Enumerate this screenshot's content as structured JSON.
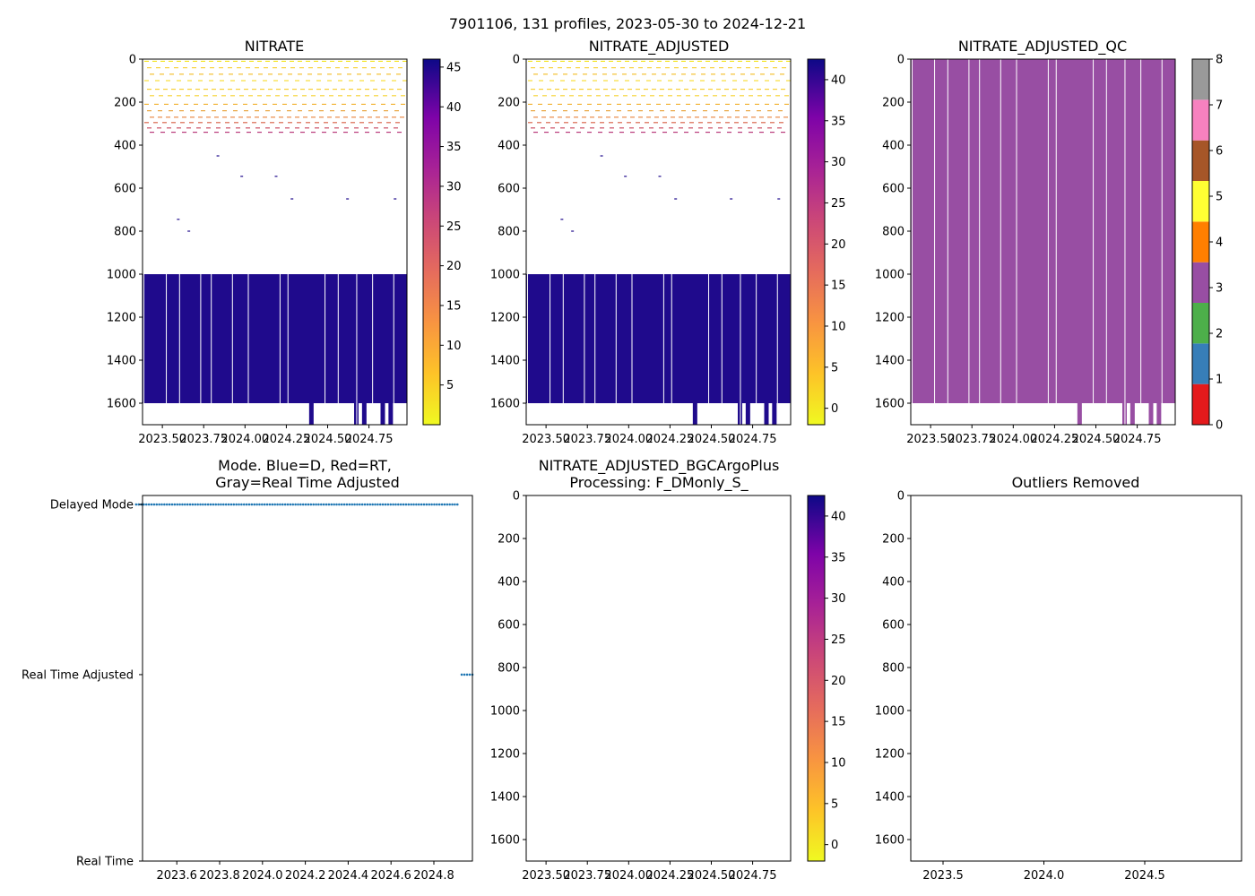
{
  "figure": {
    "suptitle": "7901106, 131 profiles, 2023-05-30 to 2024-12-21"
  },
  "colors": {
    "fill_deep": "#1f0a8c",
    "qc_purple": "#984ea3",
    "mode_dots": "#1f77b4"
  },
  "chart_data": [
    {
      "type": "heatmap",
      "title": "NITRATE",
      "xlabel": "",
      "ylabel": "",
      "xlim": [
        2023.38,
        2024.98
      ],
      "ylim": [
        1700,
        0
      ],
      "x_tick_labels": [
        "2023.50",
        "2023.75",
        "2024.00",
        "2024.25",
        "2024.50",
        "2024.75"
      ],
      "x_tick_values": [
        2023.5,
        2023.75,
        2024.0,
        2024.25,
        2024.5,
        2024.75
      ],
      "y_tick_labels": [
        "0",
        "200",
        "400",
        "600",
        "800",
        "1000",
        "1200",
        "1400",
        "1600"
      ],
      "y_tick_values": [
        0,
        200,
        400,
        600,
        800,
        1000,
        1200,
        1400,
        1600
      ],
      "colormap": "plasma_r",
      "colorbar": {
        "range": [
          0,
          46
        ],
        "tick_labels": [
          "5",
          "10",
          "15",
          "20",
          "25",
          "30",
          "35",
          "40",
          "45"
        ],
        "tick_values": [
          5,
          10,
          15,
          20,
          25,
          30,
          35,
          40,
          45
        ]
      },
      "deep_block": {
        "depth_top": 1000,
        "depth_bottom": 1600,
        "value": 44
      }
    },
    {
      "type": "heatmap",
      "title": "NITRATE_ADJUSTED",
      "xlabel": "",
      "ylabel": "",
      "xlim": [
        2023.38,
        2024.98
      ],
      "ylim": [
        1700,
        0
      ],
      "x_tick_labels": [
        "2023.50",
        "2023.75",
        "2024.00",
        "2024.25",
        "2024.50",
        "2024.75"
      ],
      "x_tick_values": [
        2023.5,
        2023.75,
        2024.0,
        2024.25,
        2024.5,
        2024.75
      ],
      "y_tick_labels": [
        "0",
        "200",
        "400",
        "600",
        "800",
        "1000",
        "1200",
        "1400",
        "1600"
      ],
      "y_tick_values": [
        0,
        200,
        400,
        600,
        800,
        1000,
        1200,
        1400,
        1600
      ],
      "colormap": "plasma_r",
      "colorbar": {
        "range": [
          -2,
          42.5
        ],
        "tick_labels": [
          "0",
          "5",
          "10",
          "15",
          "20",
          "25",
          "30",
          "35",
          "40"
        ],
        "tick_values": [
          0,
          5,
          10,
          15,
          20,
          25,
          30,
          35,
          40
        ]
      },
      "deep_block": {
        "depth_top": 1000,
        "depth_bottom": 1600,
        "value": 41
      }
    },
    {
      "type": "heatmap",
      "title": "NITRATE_ADJUSTED_QC",
      "xlabel": "",
      "ylabel": "",
      "xlim": [
        2023.38,
        2024.98
      ],
      "ylim": [
        1700,
        0
      ],
      "x_tick_labels": [
        "2023.50",
        "2023.75",
        "2024.00",
        "2024.25",
        "2024.50",
        "2024.75"
      ],
      "x_tick_values": [
        2023.5,
        2023.75,
        2024.0,
        2024.25,
        2024.5,
        2024.75
      ],
      "y_tick_labels": [
        "0",
        "200",
        "400",
        "600",
        "800",
        "1000",
        "1200",
        "1400",
        "1600"
      ],
      "y_tick_values": [
        0,
        200,
        400,
        600,
        800,
        1000,
        1200,
        1400,
        1600
      ],
      "qc_value": 3,
      "colorbar": {
        "range": [
          0,
          8
        ],
        "tick_labels": [
          "0",
          "1",
          "2",
          "3",
          "4",
          "5",
          "6",
          "7",
          "8"
        ],
        "tick_values": [
          0,
          1,
          2,
          3,
          4,
          5,
          6,
          7,
          8
        ],
        "colors": [
          "#e41a1c",
          "#377eb8",
          "#4daf4a",
          "#984ea3",
          "#ff7f00",
          "#ffff33",
          "#a65628",
          "#f781bf",
          "#999999"
        ]
      }
    },
    {
      "type": "scatter",
      "title": "Mode. Blue=D, Red=RT,",
      "title_line2": "Gray=Real Time Adjusted",
      "xlim": [
        2023.44,
        2024.98
      ],
      "x_tick_labels": [
        "2023.6",
        "2023.8",
        "2024.0",
        "2024.2",
        "2024.4",
        "2024.6",
        "2024.8"
      ],
      "x_tick_values": [
        2023.6,
        2023.8,
        2024.0,
        2024.2,
        2024.4,
        2024.6,
        2024.8
      ],
      "y_categories": [
        "Real Time",
        "Real Time Adjusted",
        "Delayed Mode"
      ],
      "series": [
        {
          "name": "Delayed Mode",
          "x_start": 2023.41,
          "x_end": 2024.91,
          "count": 126,
          "y": "Delayed Mode"
        },
        {
          "name": "Real Time Adjusted",
          "x_start": 2024.93,
          "x_end": 2024.98,
          "count": 5,
          "y": "Real Time Adjusted"
        }
      ]
    },
    {
      "type": "heatmap",
      "title": "NITRATE_ADJUSTED_BGCArgoPlus",
      "title_line2": "Processing: F_DMonly_S_",
      "xlim": [
        2023.38,
        2024.98
      ],
      "ylim": [
        1700,
        0
      ],
      "x_tick_labels": [
        "2023.50",
        "2023.75",
        "2024.00",
        "2024.25",
        "2024.50",
        "2024.75"
      ],
      "x_tick_values": [
        2023.5,
        2023.75,
        2024.0,
        2024.25,
        2024.5,
        2024.75
      ],
      "y_tick_labels": [
        "0",
        "200",
        "400",
        "600",
        "800",
        "1000",
        "1200",
        "1400",
        "1600"
      ],
      "y_tick_values": [
        0,
        200,
        400,
        600,
        800,
        1000,
        1200,
        1400,
        1600
      ],
      "colormap": "plasma_r",
      "colorbar": {
        "range": [
          -2,
          42.5
        ],
        "tick_labels": [
          "0",
          "5",
          "10",
          "15",
          "20",
          "25",
          "30",
          "35",
          "40"
        ],
        "tick_values": [
          0,
          5,
          10,
          15,
          20,
          25,
          30,
          35,
          40
        ]
      }
    },
    {
      "type": "scatter",
      "title": "Outliers Removed",
      "xlim": [
        2023.34,
        2024.98
      ],
      "ylim": [
        1700,
        0
      ],
      "x_tick_labels": [
        "2023.5",
        "2024.0",
        "2024.5"
      ],
      "x_tick_values": [
        2023.5,
        2024.0,
        2024.5
      ],
      "y_tick_labels": [
        "0",
        "200",
        "400",
        "600",
        "800",
        "1000",
        "1200",
        "1400",
        "1600"
      ],
      "y_tick_values": [
        0,
        200,
        400,
        600,
        800,
        1000,
        1200,
        1400,
        1600
      ]
    }
  ]
}
